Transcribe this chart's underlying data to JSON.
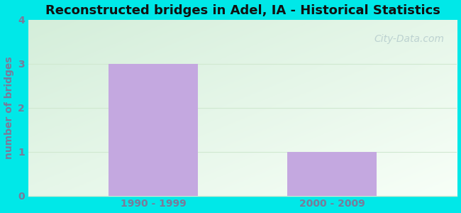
{
  "title": "Reconstructed bridges in Adel, IA - Historical Statistics",
  "categories": [
    "1990 - 1999",
    "2000 - 2009"
  ],
  "values": [
    3,
    1
  ],
  "bar_color": "#c4a8e0",
  "ylabel": "number of bridges",
  "ylabel_color": "#6e6e8e",
  "tick_color": "#7a7a9a",
  "title_fontsize": 13,
  "tick_label_fontsize": 10,
  "ylabel_fontsize": 10,
  "ylim": [
    0,
    4
  ],
  "yticks": [
    0,
    1,
    2,
    3,
    4
  ],
  "background_outer": "#00e8e8",
  "bg_color_top_left": "#d4eeda",
  "bg_color_bottom_right": "#f8fff8",
  "grid_color": "#d0e8d0",
  "watermark_text": "City-Data.com",
  "watermark_color": "#b8cece",
  "bar_width": 0.5
}
